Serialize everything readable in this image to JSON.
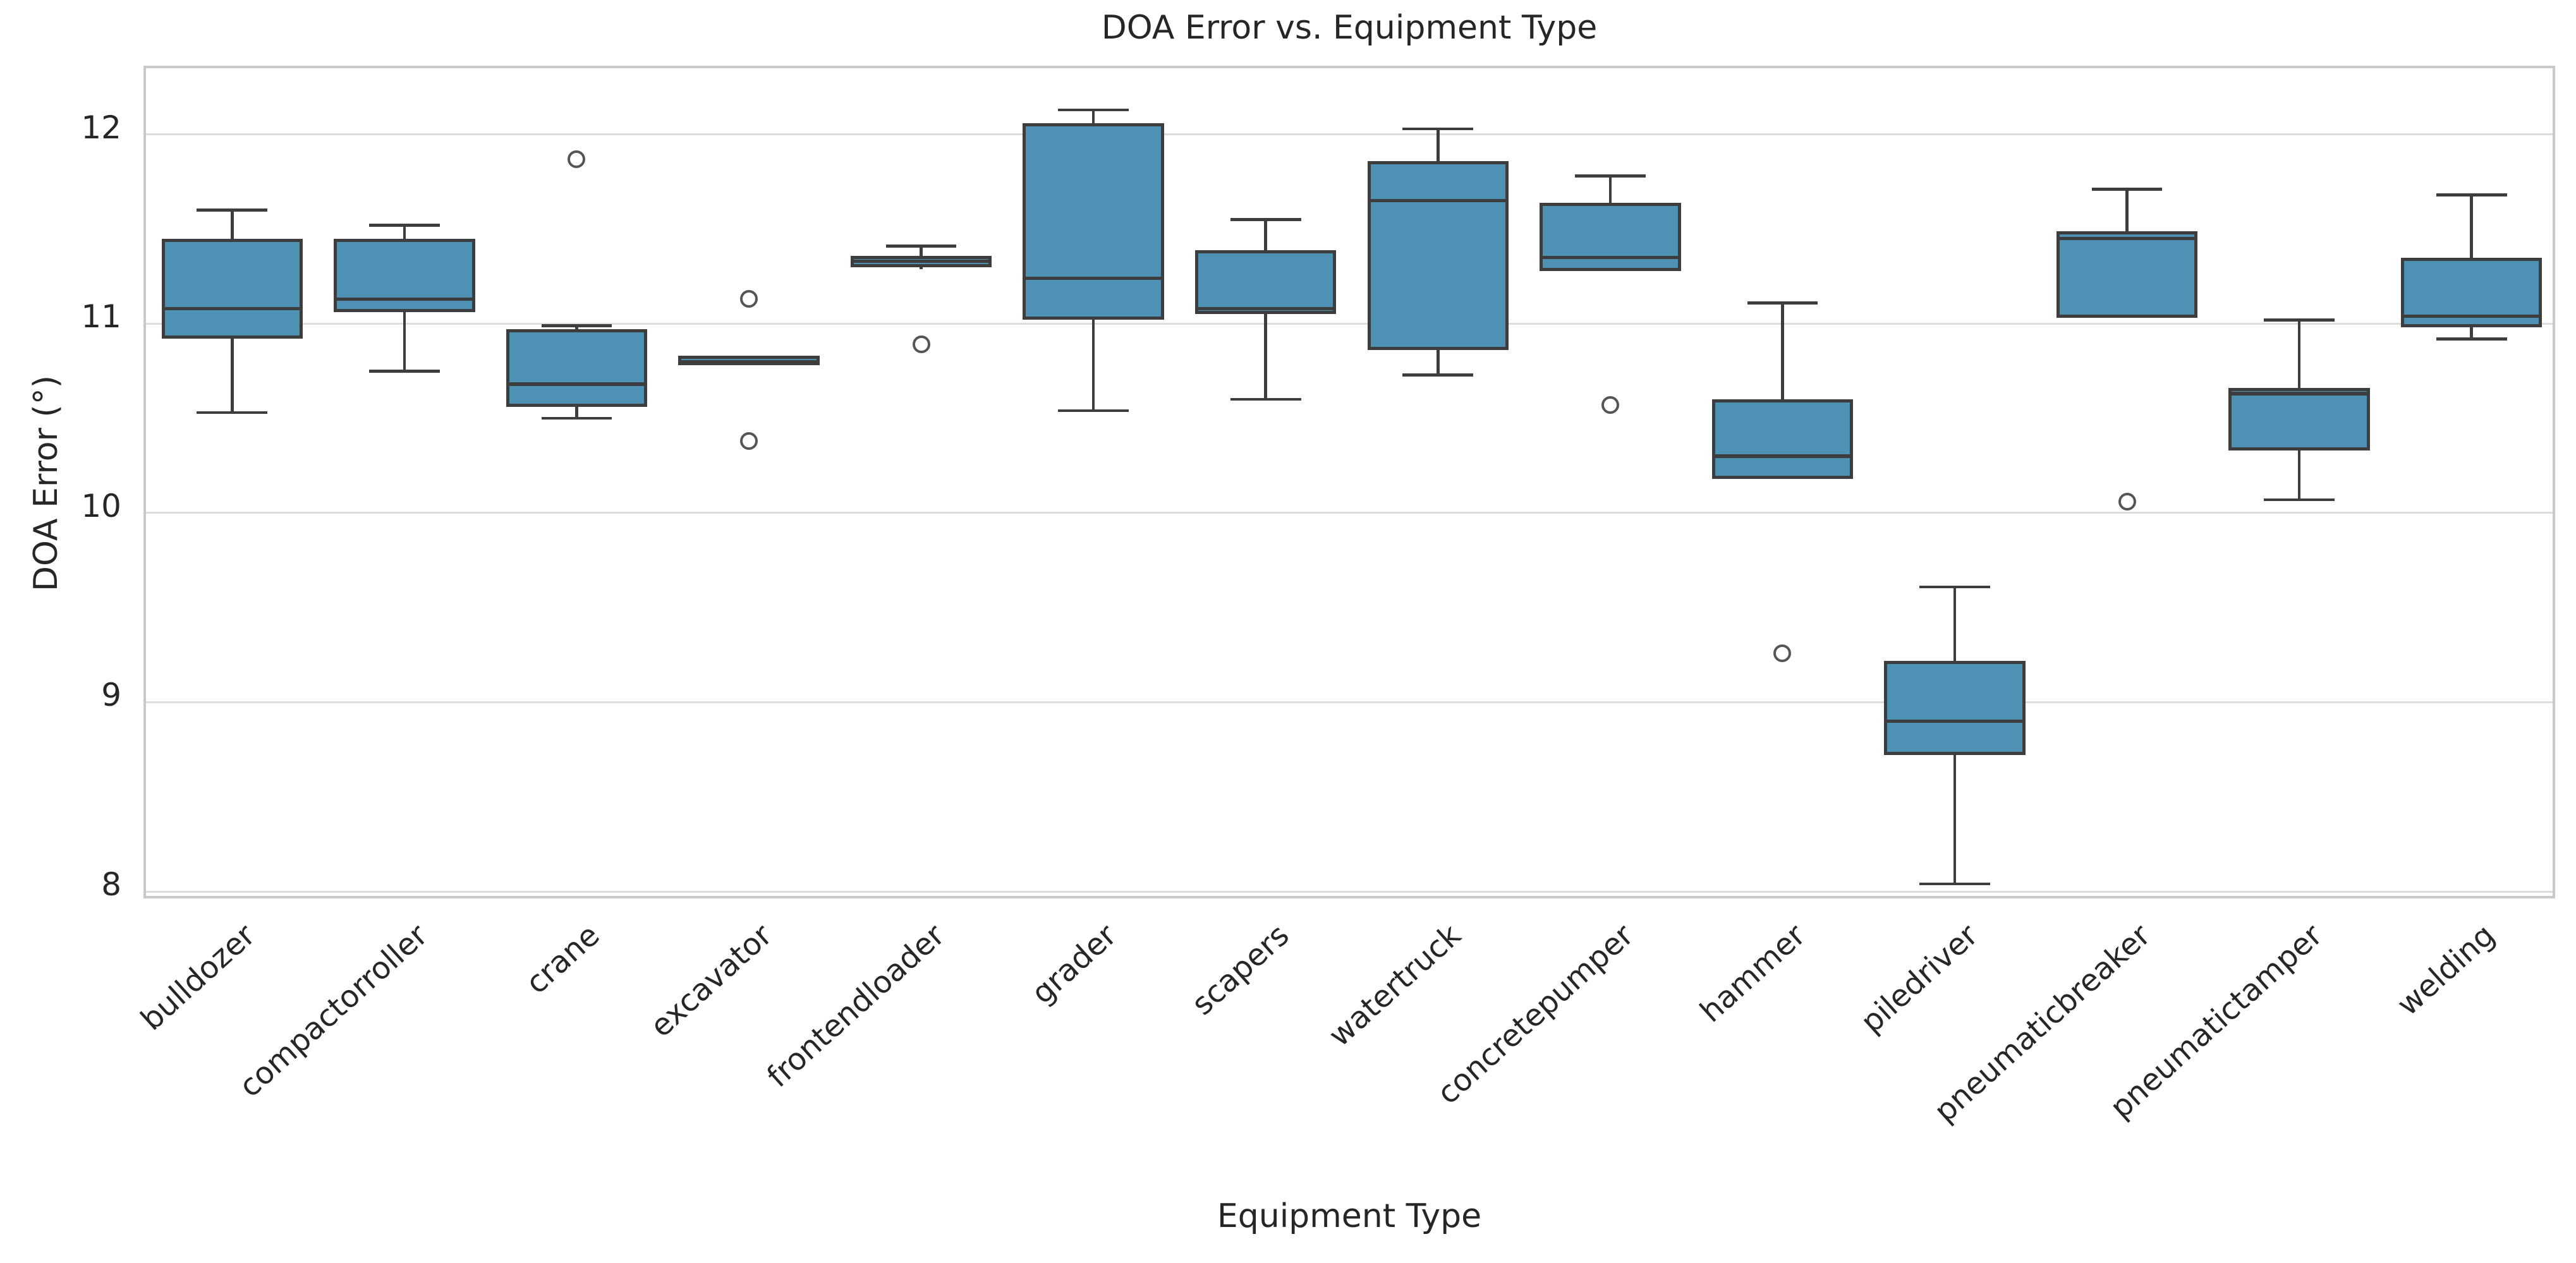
{
  "title": "DOA Error vs. Equipment Type",
  "chart_data": {
    "type": "box",
    "title": "DOA Error vs. Equipment Type",
    "xlabel": "Equipment Type",
    "ylabel": "DOA Error (°)",
    "ylim": [
      7.95,
      12.35
    ],
    "yticks": [
      12,
      11,
      10,
      9,
      8
    ],
    "grid": "horizontal",
    "legend": "none",
    "categories": [
      "bulldozer",
      "compactorroller",
      "crane",
      "excavator",
      "frontendloader",
      "grader",
      "scapers",
      "watertruck",
      "concretepumper",
      "hammer",
      "piledriver",
      "pneumaticbreaker",
      "pneumatictamper",
      "welding"
    ],
    "series": [
      {
        "name": "bulldozer",
        "whisker_low": 10.53,
        "q1": 10.92,
        "median": 11.08,
        "q3": 11.45,
        "whisker_high": 11.6,
        "outliers": []
      },
      {
        "name": "compactorroller",
        "whisker_low": 10.75,
        "q1": 11.06,
        "median": 11.13,
        "q3": 11.45,
        "whisker_high": 11.52,
        "outliers": []
      },
      {
        "name": "crane",
        "whisker_low": 10.5,
        "q1": 10.56,
        "median": 10.68,
        "q3": 10.97,
        "whisker_high": 10.99,
        "outliers": [
          11.87
        ]
      },
      {
        "name": "excavator",
        "whisker_low": 10.78,
        "q1": 10.78,
        "median": 10.8,
        "q3": 10.83,
        "whisker_high": 10.83,
        "outliers": [
          11.13,
          10.38
        ]
      },
      {
        "name": "frontendloader",
        "whisker_low": 11.29,
        "q1": 11.3,
        "median": 11.33,
        "q3": 11.36,
        "whisker_high": 11.41,
        "outliers": [
          10.89
        ]
      },
      {
        "name": "grader",
        "whisker_low": 10.54,
        "q1": 11.02,
        "median": 11.24,
        "q3": 12.06,
        "whisker_high": 12.13,
        "outliers": []
      },
      {
        "name": "scapers",
        "whisker_low": 10.6,
        "q1": 11.05,
        "median": 11.08,
        "q3": 11.39,
        "whisker_high": 11.55,
        "outliers": []
      },
      {
        "name": "watertruck",
        "whisker_low": 10.73,
        "q1": 10.86,
        "median": 11.65,
        "q3": 11.86,
        "whisker_high": 12.03,
        "outliers": []
      },
      {
        "name": "concretepumper",
        "whisker_low": 11.28,
        "q1": 11.28,
        "median": 11.35,
        "q3": 11.64,
        "whisker_high": 11.78,
        "outliers": [
          10.57
        ]
      },
      {
        "name": "hammer",
        "whisker_low": 10.18,
        "q1": 10.18,
        "median": 10.3,
        "q3": 10.6,
        "whisker_high": 11.11,
        "outliers": [
          9.26
        ]
      },
      {
        "name": "piledriver",
        "whisker_low": 8.04,
        "q1": 8.72,
        "median": 8.9,
        "q3": 9.22,
        "whisker_high": 9.61,
        "outliers": []
      },
      {
        "name": "pneumaticbreaker",
        "whisker_low": 11.03,
        "q1": 11.03,
        "median": 11.45,
        "q3": 11.49,
        "whisker_high": 11.71,
        "outliers": [
          10.06
        ]
      },
      {
        "name": "pneumatictamper",
        "whisker_low": 10.07,
        "q1": 10.33,
        "median": 10.63,
        "q3": 10.66,
        "whisker_high": 11.02,
        "outliers": []
      },
      {
        "name": "welding",
        "whisker_low": 10.92,
        "q1": 10.98,
        "median": 11.04,
        "q3": 11.35,
        "whisker_high": 11.68,
        "outliers": []
      }
    ],
    "colors": {
      "box_fill": "#4f90b5",
      "box_edge": "#3d3d3d",
      "whisker": "#3d3d3d",
      "median": "#3d3d3d",
      "outlier_edge": "#555555",
      "gridline": "#dcdcdc",
      "spine": "#c9c9c9",
      "text": "#262626",
      "background": "#ffffff"
    }
  }
}
